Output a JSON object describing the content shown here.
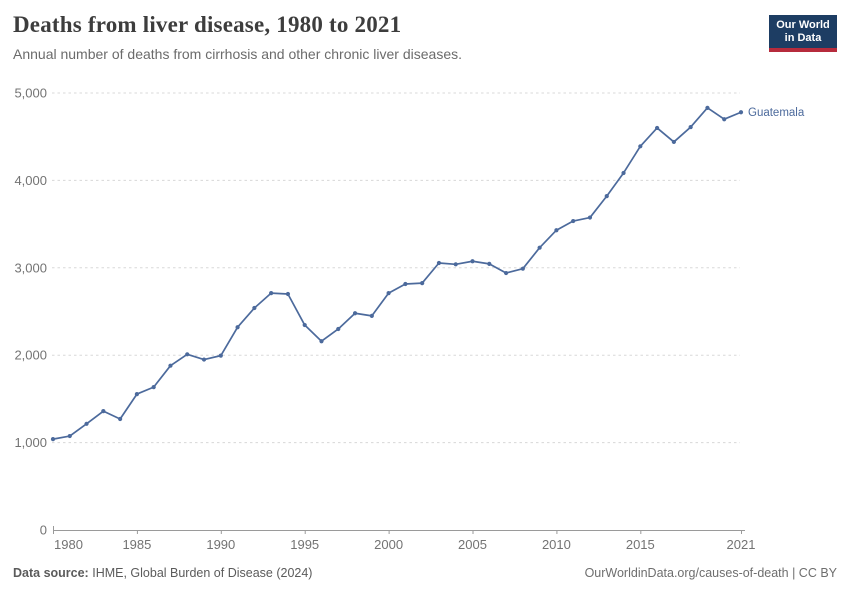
{
  "header": {
    "title": "Deaths from liver disease, 1980 to 2021",
    "subtitle": "Annual number of deaths from cirrhosis and other chronic liver diseases."
  },
  "logo": {
    "line1": "Our World",
    "line2": "in Data",
    "bg_color": "#1d3d63",
    "accent_color": "#b62b3c"
  },
  "chart_data": {
    "type": "line",
    "title": "Deaths from liver disease, 1980 to 2021",
    "subtitle": "Annual number of deaths from cirrhosis and other chronic liver diseases.",
    "xlabel": "",
    "ylabel": "",
    "xlim": [
      1980,
      2021
    ],
    "ylim": [
      0,
      5000
    ],
    "grid": "dashed-horizontal",
    "legend_position": "end-of-line-label",
    "x_ticks": [
      1980,
      1985,
      1990,
      1995,
      2000,
      2005,
      2010,
      2015,
      2021
    ],
    "y_ticks": [
      0,
      1000,
      2000,
      3000,
      4000,
      5000
    ],
    "colors": {
      "grid": "#d8d8d8",
      "axis": "#9a9a9a",
      "tick_label": "#737373"
    },
    "series": [
      {
        "name": "Guatemala",
        "color": "#4C6A9C",
        "x": [
          1980,
          1981,
          1982,
          1983,
          1984,
          1985,
          1986,
          1987,
          1988,
          1989,
          1990,
          1991,
          1992,
          1993,
          1994,
          1995,
          1996,
          1997,
          1998,
          1999,
          2000,
          2001,
          2002,
          2003,
          2004,
          2005,
          2006,
          2007,
          2008,
          2009,
          2010,
          2011,
          2012,
          2013,
          2014,
          2015,
          2016,
          2017,
          2018,
          2019,
          2020,
          2021
        ],
        "values": [
          1040,
          1075,
          1215,
          1360,
          1270,
          1555,
          1635,
          1880,
          2010,
          1950,
          1995,
          2320,
          2540,
          2710,
          2700,
          2345,
          2160,
          2300,
          2480,
          2450,
          2710,
          2815,
          2825,
          3055,
          3040,
          3075,
          3045,
          2940,
          2990,
          3230,
          3430,
          3535,
          3575,
          3820,
          4085,
          4390,
          4600,
          4440,
          4610,
          4830,
          4700,
          4780
        ]
      }
    ]
  },
  "footer": {
    "source_label": "Data source:",
    "source_text": "IHME, Global Burden of Disease (2024)",
    "link": "OurWorldinData.org/causes-of-death | CC BY"
  }
}
